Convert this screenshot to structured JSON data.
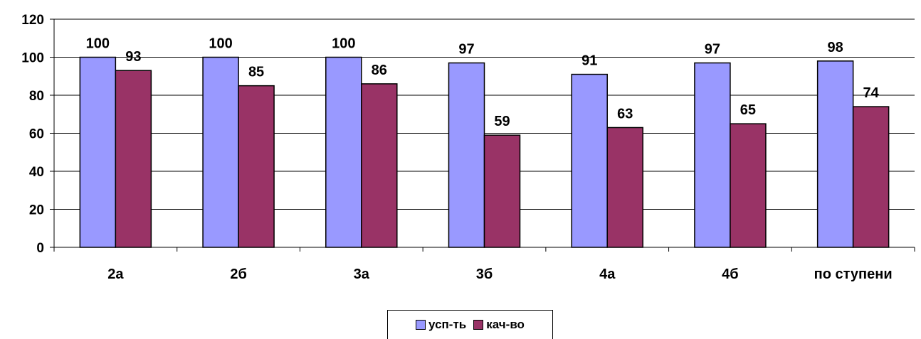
{
  "chart_data": {
    "type": "bar",
    "title": "",
    "xlabel": "",
    "ylabel": "",
    "categories": [
      "2а",
      "2б",
      "3а",
      "3б",
      "4а",
      "4б",
      "по ступени"
    ],
    "series": [
      {
        "name": "усп-ть",
        "color": "#9999FF",
        "values": [
          100,
          100,
          100,
          97,
          91,
          97,
          98
        ]
      },
      {
        "name": "кач-во",
        "color": "#993366",
        "values": [
          93,
          85,
          86,
          59,
          63,
          65,
          74
        ]
      }
    ],
    "ylim": [
      0,
      120
    ],
    "yticks": [
      0,
      20,
      40,
      60,
      80,
      100,
      120
    ],
    "grid": true,
    "data_labels": true,
    "legend_position": "bottom"
  }
}
